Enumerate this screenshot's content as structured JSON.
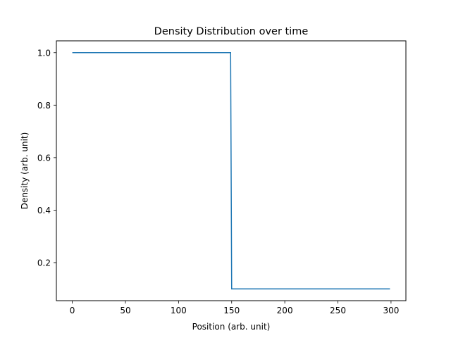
{
  "chart_data": {
    "type": "line",
    "title": "Density Distribution over time",
    "xlabel": "Position (arb. unit)",
    "ylabel": "Density (arb. unit)",
    "xlim": [
      -15,
      314
    ],
    "ylim": [
      0.055,
      1.045
    ],
    "xticks": [
      0,
      50,
      100,
      150,
      200,
      250,
      300
    ],
    "xtick_labels": [
      "0",
      "50",
      "100",
      "150",
      "200",
      "250",
      "300"
    ],
    "yticks": [
      0.2,
      0.4,
      0.6,
      0.8,
      1.0
    ],
    "ytick_labels": [
      "0.2",
      "0.4",
      "0.6",
      "0.8",
      "1.0"
    ],
    "grid": false,
    "legend": "none",
    "series": [
      {
        "color": "#1f77b4",
        "x": [
          0,
          149,
          150,
          299
        ],
        "y": [
          1.0,
          1.0,
          0.1,
          0.1
        ]
      }
    ]
  }
}
